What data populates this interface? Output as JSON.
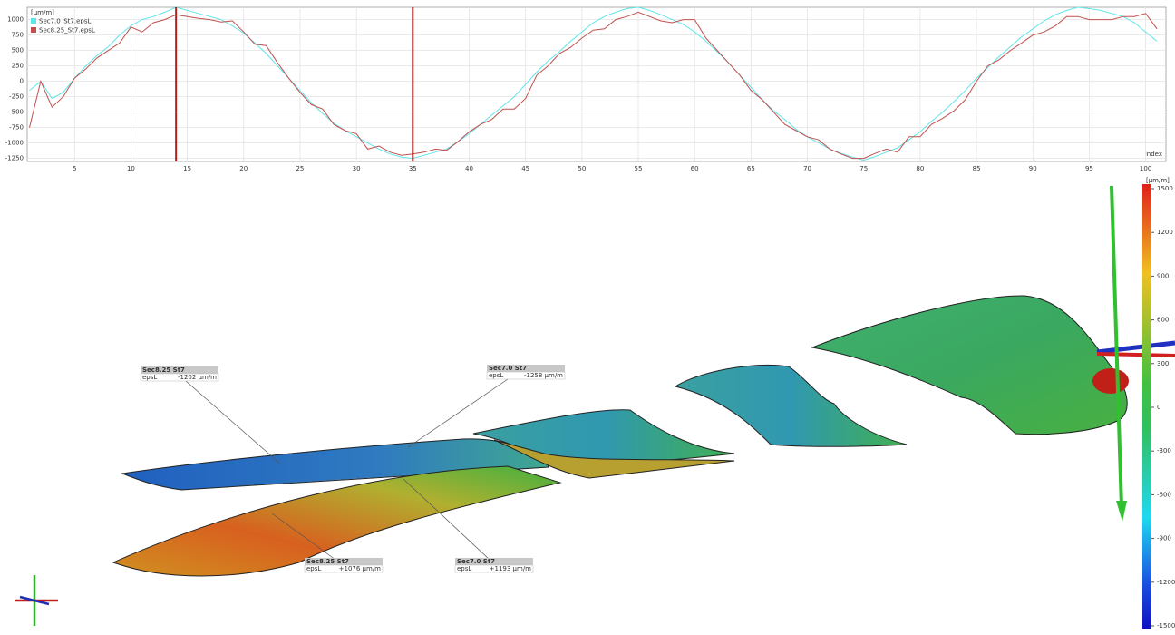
{
  "chart_data": {
    "type": "line",
    "y_label": "[µm/m]",
    "x_label": "Index",
    "x": [
      1,
      2,
      3,
      4,
      5,
      6,
      7,
      8,
      9,
      10,
      11,
      12,
      13,
      14,
      15,
      16,
      17,
      18,
      19,
      20,
      21,
      22,
      23,
      24,
      25,
      26,
      27,
      28,
      29,
      30,
      31,
      32,
      33,
      34,
      35,
      36,
      37,
      38,
      39,
      40,
      41,
      42,
      43,
      44,
      45,
      46,
      47,
      48,
      49,
      50,
      51,
      52,
      53,
      54,
      55,
      56,
      57,
      58,
      59,
      60,
      61,
      62,
      63,
      64,
      65,
      66,
      67,
      68,
      69,
      70,
      71,
      72,
      73,
      74,
      75,
      76,
      77,
      78,
      79,
      80,
      81,
      82,
      83,
      84,
      85,
      86,
      87,
      88,
      89,
      90,
      91,
      92,
      93,
      94,
      95,
      96,
      97,
      98,
      99,
      100,
      101
    ],
    "series": [
      {
        "name": "Sec7.0_St7.epsL",
        "color": "#5fe6ea",
        "values": [
          -150,
          0,
          -280,
          -180,
          50,
          250,
          420,
          560,
          750,
          900,
          1000,
          1050,
          1120,
          1200,
          1150,
          1100,
          1050,
          1000,
          900,
          780,
          620,
          450,
          250,
          50,
          -150,
          -350,
          -520,
          -680,
          -800,
          -900,
          -1000,
          -1100,
          -1180,
          -1230,
          -1250,
          -1200,
          -1150,
          -1100,
          -980,
          -850,
          -700,
          -550,
          -400,
          -250,
          -50,
          150,
          330,
          480,
          650,
          800,
          950,
          1050,
          1120,
          1180,
          1200,
          1150,
          1080,
          1000,
          920,
          800,
          650,
          480,
          300,
          100,
          -100,
          -300,
          -480,
          -620,
          -780,
          -900,
          -1000,
          -1100,
          -1170,
          -1230,
          -1280,
          -1220,
          -1150,
          -1080,
          -950,
          -820,
          -650,
          -500,
          -330,
          -150,
          50,
          220,
          400,
          560,
          720,
          850,
          980,
          1080,
          1150,
          1200,
          1180,
          1150,
          1100,
          1050,
          950,
          800,
          650
        ]
      },
      {
        "name": "Sec8.25_St7.epsL",
        "color": "#c0504d",
        "values": [
          -750,
          0,
          -420,
          -250,
          50,
          200,
          380,
          500,
          620,
          880,
          800,
          950,
          1000,
          1080,
          1050,
          1020,
          1000,
          960,
          980,
          800,
          600,
          580,
          300,
          50,
          -180,
          -380,
          -450,
          -700,
          -800,
          -850,
          -1100,
          -1050,
          -1150,
          -1200,
          -1180,
          -1150,
          -1100,
          -1120,
          -980,
          -820,
          -700,
          -620,
          -450,
          -450,
          -280,
          100,
          250,
          450,
          550,
          700,
          830,
          850,
          1000,
          1050,
          1120,
          1050,
          980,
          950,
          1000,
          1000,
          700,
          500,
          300,
          100,
          -150,
          -300,
          -500,
          -700,
          -800,
          -900,
          -950,
          -1100,
          -1180,
          -1250,
          -1250,
          -1170,
          -1100,
          -1150,
          -900,
          -900,
          -700,
          -600,
          -480,
          -300,
          0,
          250,
          350,
          500,
          620,
          750,
          800,
          900,
          1050,
          1050,
          1000,
          1000,
          1000,
          1050,
          1050,
          1100,
          850
        ]
      }
    ],
    "cursors": [
      14,
      35
    ],
    "xlim": [
      0.8,
      101.8
    ],
    "xticks": [
      5,
      10,
      15,
      20,
      25,
      30,
      35,
      40,
      45,
      50,
      55,
      60,
      65,
      70,
      75,
      80,
      85,
      90,
      95,
      100
    ],
    "ylim": [
      -1300,
      1200
    ],
    "yticks": [
      -1250,
      -1000,
      -750,
      -500,
      -250,
      0,
      250,
      500,
      750,
      1000
    ],
    "grid": true
  },
  "annotations": [
    {
      "title": "Sec8.25 St7",
      "field": "epsL",
      "value": "-1202 µm/m"
    },
    {
      "title": "Sec7.0 St7",
      "field": "epsL",
      "value": "-1258 µm/m"
    },
    {
      "title": "Sec8.25 St7",
      "field": "epsL",
      "value": "+1076 µm/m"
    },
    {
      "title": "Sec7.0 St7",
      "field": "epsL",
      "value": "+1193 µm/m"
    }
  ],
  "colorbar": {
    "label": "[µm/m]",
    "range": [
      -1500,
      1500
    ],
    "ticks": [
      1500,
      1200,
      900,
      600,
      300,
      0,
      -300,
      -600,
      -900,
      -1200,
      -1500
    ]
  }
}
